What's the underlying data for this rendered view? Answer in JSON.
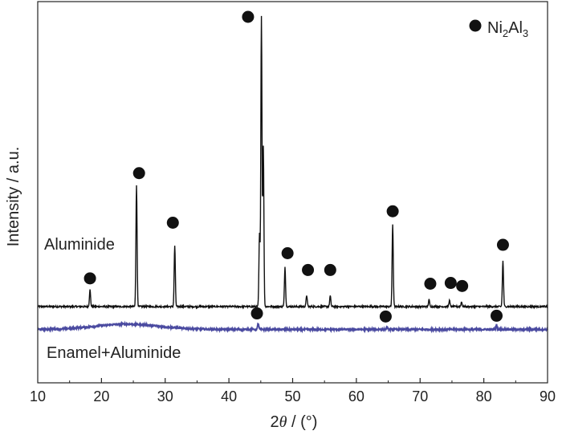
{
  "chart_data": {
    "type": "line",
    "xlabel_prefix": "2",
    "xlabel_theta": "θ",
    "xlabel_suffix": " / (°)",
    "ylabel": "Intensity / a.u.",
    "xlim": [
      10,
      90
    ],
    "x_ticks": [
      "10",
      "20",
      "30",
      "40",
      "50",
      "60",
      "70",
      "80",
      "90"
    ],
    "yticks_shown": false,
    "grid": false,
    "legend": {
      "position": "top-right",
      "marker": "filled-circle",
      "base": "Ni",
      "sub1": "2",
      "mid": "Al",
      "sub2": "3",
      "color": "#111111"
    },
    "series": [
      {
        "name": "Aluminide",
        "color": "#111111",
        "baseline": 100,
        "peaks": [
          {
            "x": 18.2,
            "y": 22
          },
          {
            "x": 25.5,
            "y": 160
          },
          {
            "x": 31.5,
            "y": 80
          },
          {
            "x": 44.8,
            "y": 95
          },
          {
            "x": 45.1,
            "y": 380
          },
          {
            "x": 45.4,
            "y": 210
          },
          {
            "x": 48.8,
            "y": 52
          },
          {
            "x": 52.2,
            "y": 15
          },
          {
            "x": 55.9,
            "y": 14
          },
          {
            "x": 65.7,
            "y": 108
          },
          {
            "x": 71.4,
            "y": 9
          },
          {
            "x": 74.6,
            "y": 8
          },
          {
            "x": 76.5,
            "y": 6
          },
          {
            "x": 83.0,
            "y": 60
          }
        ]
      },
      {
        "name": "Enamel+Aluminide",
        "color": "#4a4aa0",
        "baseline": 70,
        "hump": {
          "center": 24,
          "width": 7,
          "height": 7
        },
        "peaks": [
          {
            "x": 44.6,
            "y": 8
          },
          {
            "x": 64.8,
            "y": 3
          },
          {
            "x": 82.0,
            "y": 6
          }
        ]
      }
    ],
    "markers": [
      {
        "x": 18.2,
        "y": 137
      },
      {
        "x": 25.9,
        "y": 275
      },
      {
        "x": 31.2,
        "y": 210
      },
      {
        "x": 43.0,
        "y": 480
      },
      {
        "x": 49.2,
        "y": 170
      },
      {
        "x": 52.4,
        "y": 148
      },
      {
        "x": 55.9,
        "y": 148
      },
      {
        "x": 65.7,
        "y": 225
      },
      {
        "x": 71.6,
        "y": 130
      },
      {
        "x": 74.8,
        "y": 131
      },
      {
        "x": 76.6,
        "y": 127
      },
      {
        "x": 83.0,
        "y": 181
      },
      {
        "x": 44.4,
        "y": 91
      },
      {
        "x": 64.6,
        "y": 87
      },
      {
        "x": 82.0,
        "y": 88
      }
    ],
    "ylim": [
      0,
      500
    ]
  }
}
